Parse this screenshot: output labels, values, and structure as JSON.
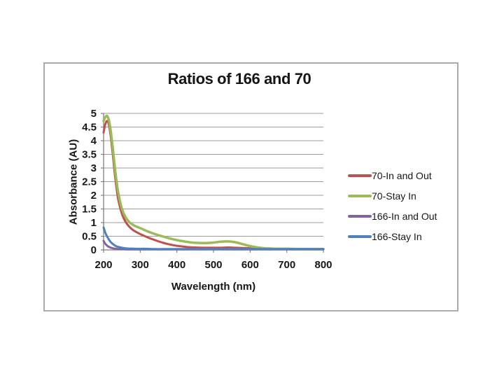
{
  "chart_data": {
    "type": "line",
    "title": "Ratios of 166 and 70",
    "xlabel": "Wavelength (nm)",
    "ylabel": "Absorbance (AU)",
    "xlim": [
      200,
      800
    ],
    "ylim": [
      0,
      5
    ],
    "x_ticks": [
      200,
      300,
      400,
      500,
      600,
      700,
      800
    ],
    "y_ticks": [
      0,
      0.5,
      1,
      1.5,
      2,
      2.5,
      3,
      3.5,
      4,
      4.5,
      5
    ],
    "grid": "horizontal",
    "legend_position": "right",
    "gridline_color": "#9b9b9b",
    "axis_color": "#808080",
    "text_color": "#161616",
    "x": [
      200,
      205,
      210,
      215,
      220,
      225,
      230,
      235,
      240,
      250,
      260,
      270,
      280,
      290,
      300,
      320,
      340,
      360,
      380,
      400,
      425,
      450,
      475,
      500,
      520,
      540,
      560,
      580,
      600,
      620,
      640,
      660,
      680,
      700,
      750,
      800
    ],
    "series": [
      {
        "name": "70-In and Out",
        "color": "#C0504D",
        "width": 3,
        "values": [
          4.3,
          4.62,
          4.72,
          4.55,
          4.1,
          3.5,
          2.85,
          2.3,
          1.85,
          1.32,
          1.03,
          0.85,
          0.73,
          0.65,
          0.58,
          0.46,
          0.36,
          0.27,
          0.2,
          0.15,
          0.11,
          0.09,
          0.08,
          0.08,
          0.08,
          0.09,
          0.08,
          0.07,
          0.06,
          0.05,
          0.04,
          0.04,
          0.03,
          0.03,
          0.03,
          0.03
        ]
      },
      {
        "name": "70-Stay In",
        "color": "#9BBB59",
        "width": 3.5,
        "values": [
          4.72,
          4.87,
          4.9,
          4.72,
          4.3,
          3.75,
          3.1,
          2.55,
          2.1,
          1.5,
          1.2,
          1.02,
          0.92,
          0.85,
          0.8,
          0.68,
          0.58,
          0.5,
          0.42,
          0.36,
          0.3,
          0.26,
          0.25,
          0.27,
          0.3,
          0.31,
          0.28,
          0.21,
          0.14,
          0.09,
          0.06,
          0.05,
          0.04,
          0.04,
          0.03,
          0.03
        ]
      },
      {
        "name": "166-In and Out",
        "color": "#8064A2",
        "width": 3,
        "values": [
          0.33,
          0.22,
          0.15,
          0.11,
          0.08,
          0.06,
          0.05,
          0.04,
          0.03,
          0.03,
          0.02,
          0.02,
          0.02,
          0.02,
          0.02,
          0.02,
          0.02,
          0.02,
          0.02,
          0.02,
          0.02,
          0.02,
          0.02,
          0.02,
          0.02,
          0.02,
          0.02,
          0.02,
          0.02,
          0.02,
          0.02,
          0.02,
          0.02,
          0.02,
          0.02,
          0.02
        ]
      },
      {
        "name": "166-Stay In",
        "color": "#4F81BD",
        "width": 3,
        "values": [
          0.82,
          0.62,
          0.48,
          0.37,
          0.28,
          0.22,
          0.17,
          0.13,
          0.11,
          0.08,
          0.06,
          0.05,
          0.05,
          0.04,
          0.04,
          0.04,
          0.03,
          0.03,
          0.03,
          0.03,
          0.03,
          0.03,
          0.03,
          0.03,
          0.03,
          0.03,
          0.03,
          0.03,
          0.03,
          0.03,
          0.03,
          0.03,
          0.03,
          0.03,
          0.03,
          0.03
        ]
      }
    ]
  }
}
